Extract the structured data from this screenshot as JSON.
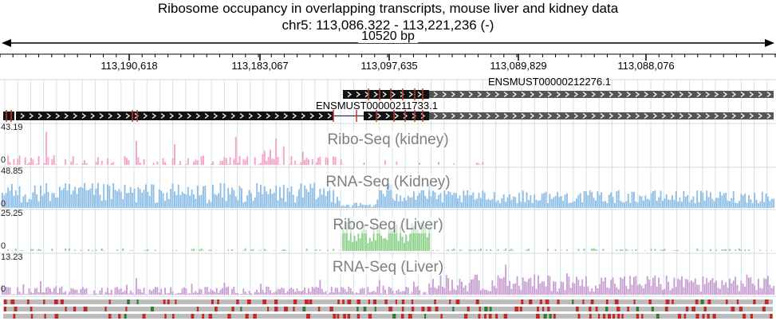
{
  "header": {
    "title_line1": "Ribosome occupancy in overlapping transcripts, mouse liver and kidney data",
    "title_line2": "chr5: 113,086,322 - 113,221,236 (-)",
    "span_label": "10520 bp"
  },
  "axis": {
    "tick_labels": [
      "113,190,618",
      "113,183,067",
      "113,097,635",
      "113,089,829",
      "113,088,076"
    ]
  },
  "transcripts": [
    {
      "name": "ENSMUST00000212276.1",
      "strand": "-"
    },
    {
      "name": "ENSMUST00000211733.1",
      "strand": "-"
    }
  ],
  "tracks": [
    {
      "name": "Ribo-Seq (kidney)",
      "ymax": "43.19",
      "ymin": "0",
      "color": "#f5a3c7"
    },
    {
      "name": "RNA-Seq (Kidney)",
      "ymax": "48.85",
      "ymin": "0",
      "color": "#8fbfe6"
    },
    {
      "name": "Ribo-Seq (Liver)",
      "ymax": "25.25",
      "ymin": "0",
      "color": "#8fd18a"
    },
    {
      "name": "RNA-Seq (Liver)",
      "ymax": "13.23",
      "ymin": "0",
      "color": "#c9a0d3"
    }
  ],
  "colors": {
    "gene_body": "#111111",
    "utr": "#555555",
    "junction": "#c0392b",
    "grid": "#cfe4ea",
    "codon_red": "#c62828",
    "codon_green": "#2e7d32",
    "codon_gray": "#bdbdbd"
  }
}
